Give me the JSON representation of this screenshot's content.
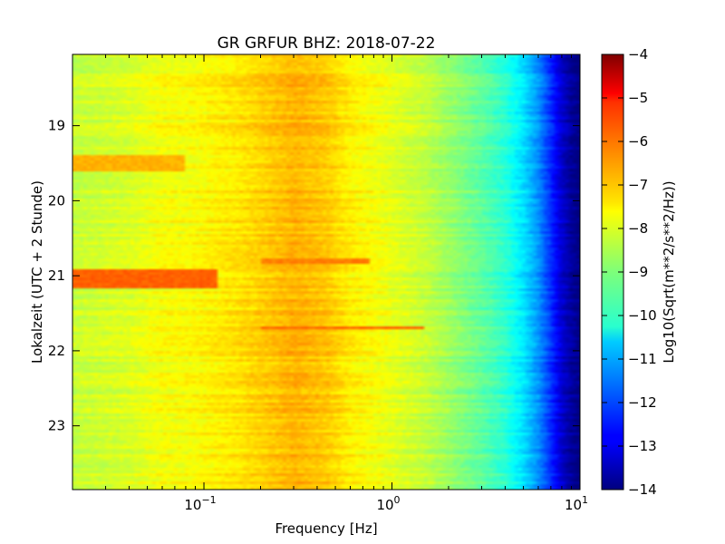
{
  "chart_data": {
    "type": "heatmap",
    "title": "GR GRFUR BHZ: 2018-07-22",
    "xlabel": "Frequency [Hz]",
    "ylabel": "Lokalzeit (UTC + 2 Stunde)",
    "colorbar_label": "Log10(Sqrt(m**2/s**2/Hz))",
    "xscale": "log",
    "xlim": [
      0.02,
      10
    ],
    "x_ticks": [
      {
        "value": 0.1,
        "base": "10",
        "exp": "−1"
      },
      {
        "value": 1,
        "base": "10",
        "exp": "0"
      },
      {
        "value": 10,
        "base": "10",
        "exp": "1"
      }
    ],
    "ylim": [
      18.05,
      23.85
    ],
    "y_inverted": true,
    "y_ticks": [
      19,
      20,
      21,
      22,
      23
    ],
    "colorbar_range": [
      -14,
      -4
    ],
    "colorbar_ticks": [
      -4,
      -5,
      -6,
      -7,
      -8,
      -9,
      -10,
      -11,
      -12,
      -13,
      -14
    ],
    "colormap": "jet",
    "background_levels": {
      "frequency_hz": [
        0.02,
        0.04,
        0.06,
        0.08,
        0.12,
        0.15,
        0.2,
        0.3,
        0.45,
        0.6,
        0.8,
        1,
        1.5,
        2,
        3,
        4,
        5,
        6,
        7,
        8,
        9,
        10
      ],
      "log10_amplitude": [
        -8.3,
        -8.1,
        -7.8,
        -7.8,
        -7.6,
        -7.5,
        -7.3,
        -7.0,
        -7.2,
        -7.6,
        -7.8,
        -8.0,
        -8.3,
        -8.7,
        -9.3,
        -9.8,
        -10.5,
        -11.3,
        -12.3,
        -13.2,
        -13.7,
        -14.0
      ]
    },
    "events": [
      {
        "time": 19.5,
        "duration": 0.25,
        "fmin": 0.02,
        "fmax": 0.08,
        "log10_amplitude": -7.0
      },
      {
        "time": 20.8,
        "duration": 0.06,
        "fmin": 0.2,
        "fmax": 0.75,
        "log10_amplitude": -6.5
      },
      {
        "time": 21.05,
        "duration": 0.25,
        "fmin": 0.02,
        "fmax": 0.12,
        "log10_amplitude": -6.2
      },
      {
        "time": 21.7,
        "duration": 0.05,
        "fmin": 0.2,
        "fmax": 1.5,
        "log10_amplitude": -6.3
      }
    ]
  }
}
